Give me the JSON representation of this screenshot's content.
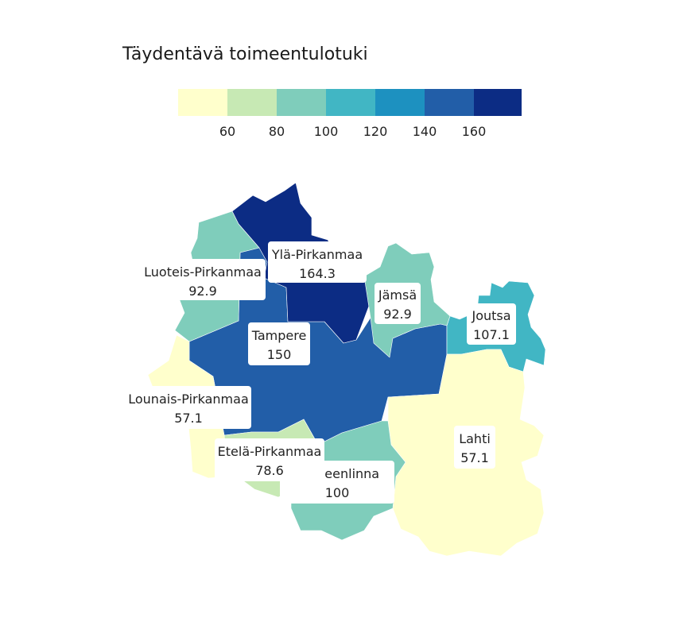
{
  "title": "Täydentävä toimeentulotuki",
  "legend": {
    "colors": [
      "#ffffcc",
      "#c7e9b4",
      "#7fcdbb",
      "#41b6c4",
      "#1d91c0",
      "#225ea8",
      "#0c2c84"
    ],
    "ticks": [
      "60",
      "80",
      "100",
      "120",
      "140",
      "160"
    ]
  },
  "regions": [
    {
      "name": "Ylä-Pirkanmaa",
      "value": "164.3",
      "color": "#0c2c84"
    },
    {
      "name": "Luoteis-Pirkanmaa",
      "value": "92.9",
      "color": "#7fcdbb"
    },
    {
      "name": "Jämsä",
      "value": "92.9",
      "color": "#7fcdbb"
    },
    {
      "name": "Joutsa",
      "value": "107.1",
      "color": "#41b6c4"
    },
    {
      "name": "Tampere",
      "value": "150",
      "color": "#225ea8"
    },
    {
      "name": "Lounais-Pirkanmaa",
      "value": "57.1",
      "color": "#ffffcc"
    },
    {
      "name": "Lahti",
      "value": "57.1",
      "color": "#ffffcc"
    },
    {
      "name": "Etelä-Pirkanmaa",
      "value": "78.6",
      "color": "#c7e9b4"
    },
    {
      "name": "Hämeenlinna",
      "value": "100",
      "color": "#7fcdbb"
    }
  ]
}
